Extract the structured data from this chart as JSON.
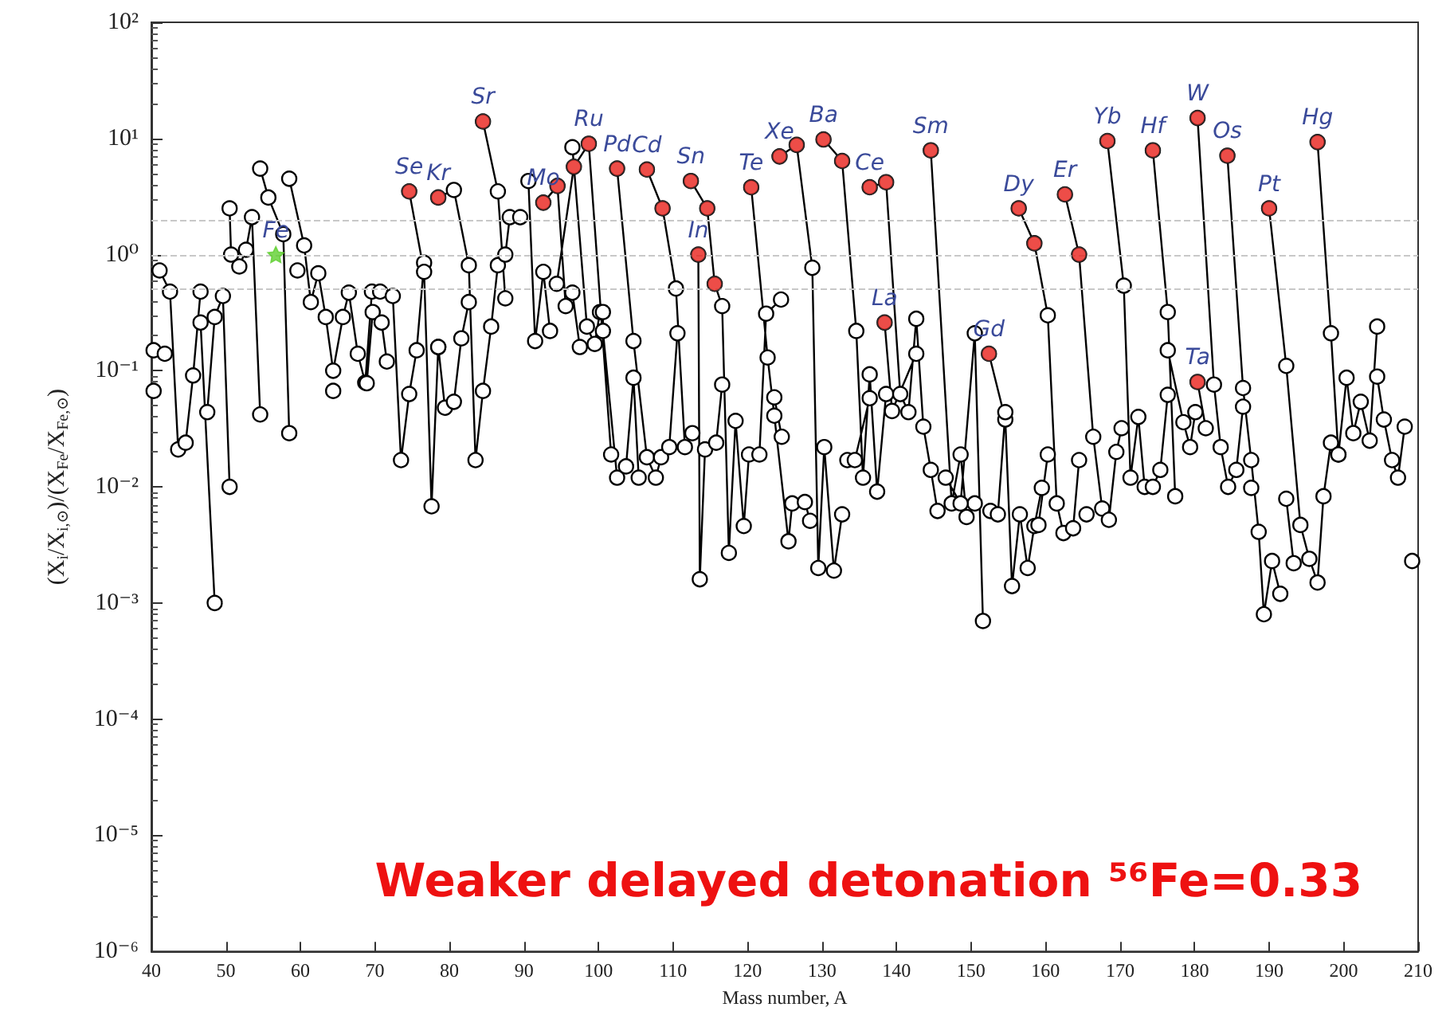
{
  "chart_data": {
    "type": "line",
    "xlabel": "Mass number, A",
    "ylabel": "(X$_{i}$/X$_{i,⊙}$)/(X$_{Fe}$/X$_{Fe,⊙}$)",
    "log": "y",
    "marker": "circle",
    "line_style": "solid",
    "xlim": [
      40,
      210
    ],
    "xticks": [
      40,
      50,
      60,
      70,
      80,
      90,
      100,
      110,
      120,
      130,
      140,
      150,
      160,
      170,
      180,
      190,
      200,
      210
    ],
    "ylim": [
      1e-06,
      100
    ],
    "yticks": [
      {
        "value": 1e-06,
        "label": "10⁻⁶"
      },
      {
        "value": 1e-05,
        "label": "10⁻⁵"
      },
      {
        "value": 0.0001,
        "label": "10⁻⁴"
      },
      {
        "value": 0.001,
        "label": "10⁻³"
      },
      {
        "value": 0.01,
        "label": "10⁻²"
      },
      {
        "value": 0.1,
        "label": "10⁻¹"
      },
      {
        "value": 1,
        "label": "10⁰"
      },
      {
        "value": 10,
        "label": "10¹"
      },
      {
        "value": 100,
        "label": "10²"
      }
    ],
    "ref_lines": [
      {
        "axis": "y",
        "value": 0.5,
        "color": "#c8c8c8",
        "line_style": "dashed"
      },
      {
        "axis": "y",
        "value": 1,
        "color": "#c8c8c8",
        "line_style": "dashed"
      },
      {
        "axis": "y",
        "value": 2,
        "color": "#c8c8c8",
        "line_style": "dashed"
      }
    ],
    "series": [
      {
        "color": "#000000",
        "x": [
          40.3,
          null,
          41.8,
          null,
          40.3,
          null,
          41.1,
          42.5,
          43.6,
          44.6,
          45.6,
          46.6,
          null,
          46.6,
          48.5,
          null,
          47.5,
          48.5,
          49.6,
          50.5,
          null,
          50.5,
          50.7,
          51.8,
          52.7,
          53.5,
          54.6,
          null,
          54.6,
          55.7,
          57.7,
          58.5,
          null,
          58.5,
          60.5,
          61.4,
          62.4,
          63.4,
          64.4,
          65.7,
          66.5,
          67.7,
          68.7,
          69.6,
          null,
          59.6,
          null,
          64.4,
          null,
          68.9,
          69.7,
          70.9,
          71.6,
          null,
          70.7,
          72.4,
          73.5,
          74.6,
          75.6,
          76.6,
          null,
          74.6,
          76.6,
          77.6,
          78.5,
          null,
          78.5,
          80.6,
          82.6,
          83.5,
          84.5,
          85.6,
          86.5,
          87.5,
          88.1,
          89.5,
          null,
          78.5,
          79.4,
          80.6,
          81.6,
          82.6,
          null,
          84.5,
          86.5,
          87.5,
          null,
          90.6,
          91.5,
          92.6,
          93.5,
          null,
          92.6,
          94.5,
          95.6,
          96.5,
          97.5,
          null,
          94.4,
          96.7,
          98.7,
          101.7,
          null,
          96.5,
          98.45,
          99.5,
          100.2,
          null,
          100.6,
          100.6,
          102.5,
          103.7,
          104.7,
          105.4,
          null,
          102.5,
          104.7,
          106.5,
          107.7,
          108.4,
          109.5,
          110.6,
          null,
          106.5,
          108.6,
          110.4,
          111.6,
          112.6,
          null,
          112.4,
          114.6,
          115.6,
          116.6,
          117.5,
          118.4,
          119.5,
          120.2,
          null,
          113.4,
          113.6,
          114.3,
          115.8,
          116.6,
          null,
          120.5,
          122.7,
          123.6,
          125.5,
          126.0,
          127.7,
          128.4,
          null,
          121.6,
          122.5,
          124.5,
          null,
          123.6,
          124.6,
          null,
          124.3,
          126.6,
          128.7,
          129.5,
          130.3,
          131.6,
          132.7,
          null,
          130.2,
          132.7,
          134.6,
          135.5,
          136.4,
          137.4,
          138.6,
          null,
          133.4,
          134.4,
          136.4,
          null,
          136.4,
          138.6,
          140.5,
          141.6,
          142.65,
          143.6,
          144.6,
          145.5,
          null,
          138.4,
          139.4,
          142.65,
          null,
          144.6,
          147.4,
          148.6,
          149.4,
          150.5,
          null,
          146.6,
          148.6,
          150.5,
          151.6,
          null,
          152.4,
          154.6,
          155.5,
          156.55,
          157.6,
          158.5,
          159.5,
          null,
          152.6,
          153.6,
          154.6,
          null,
          156.4,
          158.5,
          160.3,
          161.5,
          162.4,
          163.7,
          164.5,
          null,
          159.05,
          160.3,
          null,
          162.6,
          164.5,
          166.4,
          167.6,
          168.5,
          169.5,
          170.2,
          null,
          165.5,
          null,
          168.3,
          170.5,
          171.4,
          172.45,
          173.3,
          174.4,
          175.4,
          176.4,
          null,
          174.4,
          176.4,
          177.4,
          null,
          176.4,
          178.5,
          179.4,
          180.1,
          null,
          180.4,
          182.6,
          183.5,
          184.5,
          185.6,
          186.5,
          null,
          180.4,
          181.5,
          null,
          184.4,
          186.5,
          187.6,
          188.6,
          189.3,
          190.4,
          191.5,
          null,
          187.6,
          null,
          190.0,
          192.3,
          194.2,
          195.4,
          196.5,
          197.3,
          198.3,
          199.3,
          null,
          192.3,
          193.3,
          null,
          196.5,
          198.3,
          199.3,
          200.4,
          201.3,
          202.3,
          203.5,
          204.5,
          null,
          204.5,
          205.4,
          206.5,
          207.3,
          208.2,
          null,
          209.2
        ],
        "values": [
          0.15,
          null,
          0.14,
          null,
          0.067,
          null,
          0.73,
          0.48,
          0.021,
          0.024,
          0.091,
          0.48,
          null,
          0.26,
          0.001,
          null,
          0.044,
          0.29,
          0.44,
          0.01,
          null,
          2.5,
          1.0,
          0.79,
          1.1,
          2.1,
          0.042,
          null,
          5.5,
          3.1,
          1.5,
          0.029,
          null,
          4.5,
          1.2,
          0.39,
          0.69,
          0.29,
          0.1,
          0.29,
          0.47,
          0.14,
          0.079,
          0.48,
          null,
          0.73,
          null,
          0.067,
          null,
          0.078,
          0.32,
          0.26,
          0.12,
          null,
          0.48,
          0.44,
          0.017,
          0.063,
          0.15,
          0.85,
          null,
          3.5,
          0.71,
          0.0068,
          0.16,
          null,
          3.1,
          3.6,
          0.81,
          0.017,
          0.067,
          0.24,
          0.81,
          1.0,
          2.1,
          2.1,
          null,
          0.16,
          0.048,
          0.054,
          0.19,
          0.39,
          null,
          14,
          3.5,
          0.42,
          null,
          4.3,
          0.18,
          0.71,
          0.22,
          null,
          2.8,
          3.9,
          0.36,
          0.47,
          0.16,
          null,
          0.56,
          5.7,
          9.0,
          0.019,
          null,
          8.4,
          0.24,
          0.17,
          0.32,
          null,
          0.32,
          0.22,
          0.012,
          0.015,
          0.087,
          0.012,
          null,
          5.5,
          0.18,
          0.018,
          0.012,
          0.018,
          0.022,
          0.21,
          null,
          5.4,
          2.5,
          0.51,
          0.022,
          0.029,
          null,
          4.3,
          2.5,
          0.56,
          0.36,
          0.0027,
          0.037,
          0.0046,
          0.019,
          null,
          1.0,
          0.0016,
          0.021,
          0.024,
          0.076,
          null,
          3.8,
          0.13,
          0.041,
          0.0034,
          0.0072,
          0.0074,
          0.0051,
          null,
          0.019,
          0.31,
          0.41,
          null,
          0.059,
          0.027,
          null,
          7.0,
          8.8,
          0.77,
          0.002,
          0.022,
          0.0019,
          0.0058,
          null,
          9.8,
          6.4,
          0.22,
          0.012,
          0.093,
          0.0091,
          0.063,
          null,
          0.017,
          0.017,
          0.058,
          null,
          3.8,
          4.2,
          0.063,
          0.044,
          0.28,
          0.033,
          0.014,
          0.0062,
          null,
          0.26,
          0.045,
          0.14,
          null,
          7.9,
          0.0072,
          0.019,
          0.0055,
          0.0072,
          null,
          0.012,
          0.0072,
          0.21,
          0.0007,
          null,
          0.14,
          0.038,
          0.0014,
          0.0058,
          0.002,
          0.0046,
          0.0098,
          null,
          0.0062,
          0.0058,
          0.044,
          null,
          2.5,
          1.25,
          0.3,
          0.0072,
          0.004,
          0.0044,
          0.017,
          null,
          0.0047,
          0.019,
          null,
          3.3,
          1.0,
          0.027,
          0.0065,
          0.0052,
          0.02,
          0.032,
          null,
          0.0058,
          null,
          9.5,
          0.54,
          0.012,
          0.04,
          0.01,
          0.01,
          0.014,
          0.062,
          null,
          7.9,
          0.32,
          0.0083,
          null,
          0.15,
          0.036,
          0.022,
          0.044,
          null,
          15,
          0.076,
          0.022,
          0.01,
          0.014,
          0.049,
          null,
          0.08,
          0.032,
          null,
          7.1,
          0.071,
          0.017,
          0.0041,
          0.0008,
          0.0023,
          0.0012,
          null,
          0.0098,
          null,
          2.5,
          0.11,
          0.0047,
          0.0024,
          0.0015,
          0.0083,
          0.024,
          0.019,
          null,
          0.0079,
          0.0022,
          null,
          9.3,
          0.21,
          0.019,
          0.087,
          0.029,
          0.054,
          0.025,
          0.24,
          null,
          0.089,
          0.038,
          0.017,
          0.012,
          0.033,
          null,
          0.0023
        ]
      },
      {
        "type": "scatter",
        "color": "#e8201a",
        "x": [
          74.6,
          78.5,
          84.5,
          92.6,
          94.5,
          96.7,
          98.7,
          102.5,
          106.5,
          108.6,
          112.4,
          113.4,
          114.6,
          115.6,
          120.5,
          124.3,
          126.6,
          130.2,
          132.7,
          136.4,
          138.6,
          138.4,
          144.6,
          152.4,
          156.4,
          158.5,
          162.6,
          164.5,
          168.3,
          174.4,
          180.4,
          180.4,
          184.4,
          190.0,
          196.5
        ],
        "values": [
          3.5,
          3.1,
          14,
          2.8,
          3.9,
          5.7,
          9.0,
          5.5,
          5.4,
          2.5,
          4.3,
          1.0,
          2.5,
          0.56,
          3.8,
          7.0,
          8.8,
          9.8,
          6.4,
          3.8,
          4.2,
          0.26,
          7.9,
          0.14,
          2.5,
          1.25,
          3.3,
          1.0,
          9.5,
          7.9,
          15,
          0.08,
          7.1,
          2.5,
          9.3
        ]
      },
      {
        "type": "scatter",
        "color": "#5fcf30",
        "marker": "star",
        "x": [
          56.7
        ],
        "values": [
          1.0
        ]
      }
    ],
    "annotations": [
      {
        "text": "Fe",
        "x": 56.7,
        "y": 1.0
      },
      {
        "text": "Se",
        "x": 74.6,
        "y": 3.5
      },
      {
        "text": "Kr",
        "x": 78.5,
        "y": 3.1
      },
      {
        "text": "Sr",
        "x": 84.5,
        "y": 14
      },
      {
        "text": "Mo",
        "x": 92.6,
        "y": 2.8
      },
      {
        "text": "Ru",
        "x": 98.7,
        "y": 9.0
      },
      {
        "text": "Pd",
        "x": 102.5,
        "y": 5.5
      },
      {
        "text": "Cd",
        "x": 106.5,
        "y": 5.4
      },
      {
        "text": "Sn",
        "x": 112.4,
        "y": 4.3
      },
      {
        "text": "In",
        "x": 113.4,
        "y": 1.0
      },
      {
        "text": "Te",
        "x": 120.5,
        "y": 3.8
      },
      {
        "text": "Xe",
        "x": 124.3,
        "y": 7.0
      },
      {
        "text": "Ba",
        "x": 130.2,
        "y": 9.8
      },
      {
        "text": "Ce",
        "x": 136.4,
        "y": 3.8
      },
      {
        "text": "La",
        "x": 138.4,
        "y": 0.26
      },
      {
        "text": "Sm",
        "x": 144.6,
        "y": 7.9
      },
      {
        "text": "Gd",
        "x": 152.4,
        "y": 0.14
      },
      {
        "text": "Dy",
        "x": 156.4,
        "y": 2.5
      },
      {
        "text": "Er",
        "x": 162.6,
        "y": 3.3
      },
      {
        "text": "Yb",
        "x": 168.3,
        "y": 9.5
      },
      {
        "text": "Hf",
        "x": 174.4,
        "y": 7.9
      },
      {
        "text": "W",
        "x": 180.4,
        "y": 15
      },
      {
        "text": "Ta",
        "x": 180.4,
        "y": 0.08
      },
      {
        "text": "Os",
        "x": 184.4,
        "y": 7.1
      },
      {
        "text": "Pt",
        "x": 190.0,
        "y": 2.5
      },
      {
        "text": "Hg",
        "x": 196.5,
        "y": 9.3
      },
      "Weaker delayed detonation ⁵⁶Fe=0.33"
    ]
  }
}
